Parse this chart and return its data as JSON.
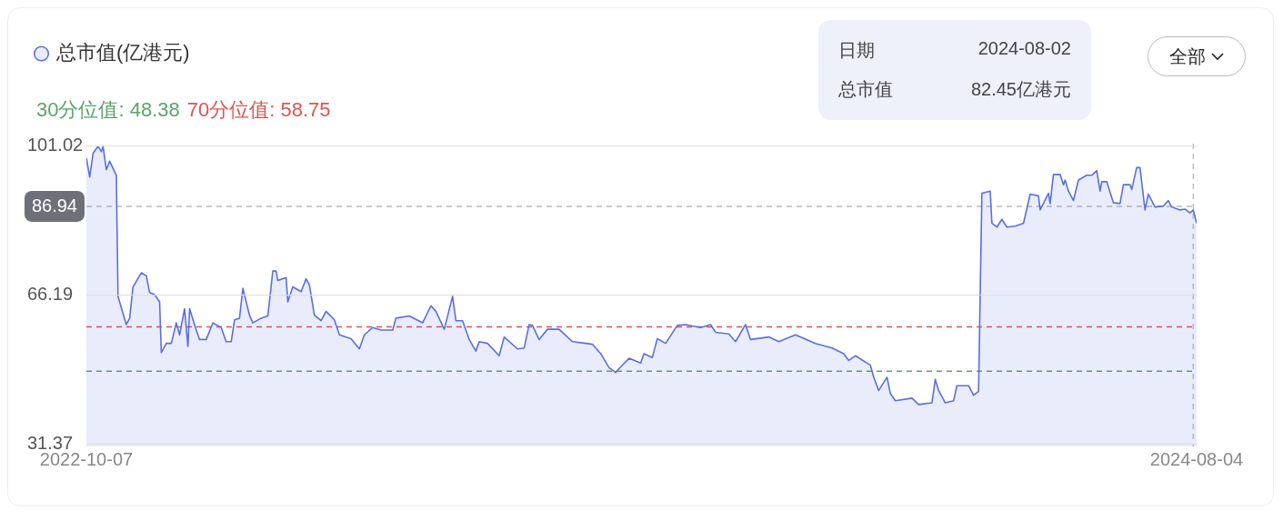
{
  "chart_data": {
    "type": "area",
    "x": [
      "2022-10-07",
      "2022-10-09",
      "2022-10-11",
      "2022-10-14",
      "2022-10-16",
      "2022-10-17",
      "2022-10-19",
      "2022-10-21",
      "2022-10-25",
      "2022-10-26",
      "2022-10-31",
      "2022-11-02",
      "2022-11-04",
      "2022-11-09",
      "2022-11-12",
      "2022-11-14",
      "2022-11-17",
      "2022-11-20",
      "2022-11-21",
      "2022-11-24",
      "2022-11-27",
      "2022-11-30",
      "2022-12-02",
      "2022-12-05",
      "2022-12-07",
      "2022-12-08",
      "2022-12-12",
      "2022-12-14",
      "2022-12-18",
      "2022-12-22",
      "2022-12-27",
      "2022-12-30",
      "2023-01-02",
      "2023-01-04",
      "2023-01-07",
      "2023-01-09",
      "2023-01-13",
      "2023-01-15",
      "2023-01-20",
      "2023-01-24",
      "2023-01-27",
      "2023-01-29",
      "2023-01-30",
      "2023-02-04",
      "2023-02-05",
      "2023-02-08",
      "2023-02-13",
      "2023-02-16",
      "2023-02-18",
      "2023-02-21",
      "2023-02-25",
      "2023-02-28",
      "2023-03-05",
      "2023-03-08",
      "2023-03-15",
      "2023-03-20",
      "2023-03-23",
      "2023-03-28",
      "2023-04-02",
      "2023-04-09",
      "2023-04-11",
      "2023-04-19",
      "2023-04-27",
      "2023-05-02",
      "2023-05-05",
      "2023-05-10",
      "2023-05-15",
      "2023-05-17",
      "2023-05-21",
      "2023-05-25",
      "2023-05-29",
      "2023-05-31",
      "2023-06-05",
      "2023-06-12",
      "2023-06-15",
      "2023-06-23",
      "2023-06-27",
      "2023-06-30",
      "2023-07-02",
      "2023-07-06",
      "2023-07-11",
      "2023-07-18",
      "2023-07-26",
      "2023-08-03",
      "2023-08-07",
      "2023-08-12",
      "2023-08-17",
      "2023-08-21",
      "2023-08-24",
      "2023-08-29",
      "2023-09-05",
      "2023-09-07",
      "2023-09-12",
      "2023-09-15",
      "2023-09-20",
      "2023-09-27",
      "2023-10-02",
      "2023-10-11",
      "2023-10-17",
      "2023-10-20",
      "2023-10-28",
      "2023-11-01",
      "2023-11-07",
      "2023-11-10",
      "2023-11-21",
      "2023-11-27",
      "2023-12-07",
      "2023-12-19",
      "2023-12-29",
      "2024-01-05",
      "2024-01-08",
      "2024-01-12",
      "2024-01-21",
      "2024-01-23",
      "2024-01-26",
      "2024-01-31",
      "2024-02-02",
      "2024-02-05",
      "2024-02-15",
      "2024-02-19",
      "2024-02-27",
      "2024-02-29",
      "2024-03-02",
      "2024-03-06",
      "2024-03-11",
      "2024-03-13",
      "2024-03-20",
      "2024-03-23",
      "2024-03-26",
      "2024-03-28",
      "2024-04-02",
      "2024-04-03",
      "2024-04-06",
      "2024-04-09",
      "2024-04-12",
      "2024-04-17",
      "2024-04-22",
      "2024-04-26",
      "2024-05-01",
      "2024-05-02",
      "2024-05-07",
      "2024-05-08",
      "2024-05-10",
      "2024-05-14",
      "2024-05-16",
      "2024-05-17",
      "2024-05-19",
      "2024-05-22",
      "2024-05-25",
      "2024-05-30",
      "2024-06-02",
      "2024-06-05",
      "2024-06-07",
      "2024-06-08",
      "2024-06-11",
      "2024-06-15",
      "2024-06-19",
      "2024-06-21",
      "2024-06-25",
      "2024-06-26",
      "2024-06-29",
      "2024-07-01",
      "2024-07-04",
      "2024-07-06",
      "2024-07-10",
      "2024-07-15",
      "2024-07-18",
      "2024-07-20",
      "2024-07-25",
      "2024-07-28",
      "2024-07-31",
      "2024-08-02",
      "2024-08-04"
    ],
    "series": [
      {
        "name": "总市值(亿港元)",
        "color": "#5b6ee1",
        "values": [
          98.2,
          93.8,
          99.3,
          101.0,
          99.7,
          101.0,
          95.5,
          97.5,
          94.2,
          65.9,
          59.3,
          60.8,
          68.1,
          71.4,
          70.7,
          66.8,
          66.3,
          64.6,
          52.7,
          54.9,
          54.9,
          59.7,
          56.9,
          63.0,
          54.2,
          63.0,
          58.0,
          55.8,
          55.8,
          59.7,
          58.6,
          55.3,
          55.3,
          60.4,
          60.8,
          67.8,
          61.5,
          59.7,
          60.8,
          61.3,
          71.8,
          71.8,
          69.6,
          70.3,
          64.6,
          68.1,
          67.0,
          70.0,
          68.5,
          61.5,
          60.2,
          62.4,
          60.4,
          56.9,
          56.0,
          53.6,
          56.9,
          58.6,
          58.0,
          58.0,
          60.8,
          61.3,
          59.7,
          63.7,
          62.4,
          58.2,
          65.9,
          60.2,
          60.2,
          55.8,
          53.1,
          55.3,
          54.9,
          52.0,
          56.4,
          53.6,
          53.8,
          59.3,
          59.1,
          55.8,
          58.2,
          58.2,
          55.3,
          54.9,
          54.7,
          52.5,
          49.2,
          48.1,
          49.4,
          51.4,
          50.3,
          52.5,
          51.6,
          56.0,
          54.9,
          59.1,
          59.3,
          58.6,
          59.3,
          57.5,
          57.1,
          55.3,
          59.3,
          55.8,
          56.4,
          55.3,
          56.9,
          54.9,
          53.8,
          52.5,
          50.9,
          52.0,
          49.8,
          47.0,
          43.9,
          47.0,
          43.2,
          41.5,
          42.1,
          40.6,
          41.0,
          46.5,
          43.9,
          41.0,
          41.5,
          45.0,
          45.0,
          42.8,
          43.7,
          90.0,
          90.5,
          83.0,
          82.1,
          83.9,
          82.1,
          82.3,
          83.0,
          89.8,
          89.4,
          86.1,
          90.0,
          87.6,
          94.4,
          94.4,
          92.0,
          93.1,
          90.5,
          88.3,
          93.1,
          94.2,
          94.2,
          95.3,
          90.5,
          92.7,
          92.7,
          87.8,
          87.6,
          92.0,
          92.0,
          90.9,
          96.0,
          96.0,
          86.1,
          89.8,
          86.8,
          87.0,
          88.3,
          86.8,
          86.1,
          86.3,
          85.4,
          86.1,
          83.0
        ]
      }
    ],
    "xlim": [
      "2022-10-07",
      "2024-08-04"
    ],
    "xticks": [
      "2022-10-07",
      "2024-08-04"
    ],
    "ylim": [
      30.8,
      101.6
    ],
    "yticks": [
      31.37,
      66.19,
      101.02
    ],
    "grid": "y",
    "legend": "top left",
    "marker": "none",
    "line_style": "solid",
    "ref_lines": [
      {
        "axis": "y",
        "value": 48.38,
        "label": "30分位值: 48.38",
        "color": "#5aa469",
        "line_style": "dashed"
      },
      {
        "axis": "y",
        "value": 58.75,
        "label": "70分位值: 58.75",
        "color": "#e05252",
        "line_style": "dashed"
      },
      {
        "axis": "y",
        "value": 86.94,
        "label": "86.94",
        "color": "#bbbbbb",
        "line_style": "dashed"
      },
      {
        "axis": "x",
        "value": "2024-08-02",
        "label": null,
        "color": "#bbbbbb",
        "line_style": "dashed"
      }
    ],
    "annotations": [
      "日期",
      "2024-08-02",
      "总市值",
      "82.45亿港元",
      "全部"
    ]
  }
}
